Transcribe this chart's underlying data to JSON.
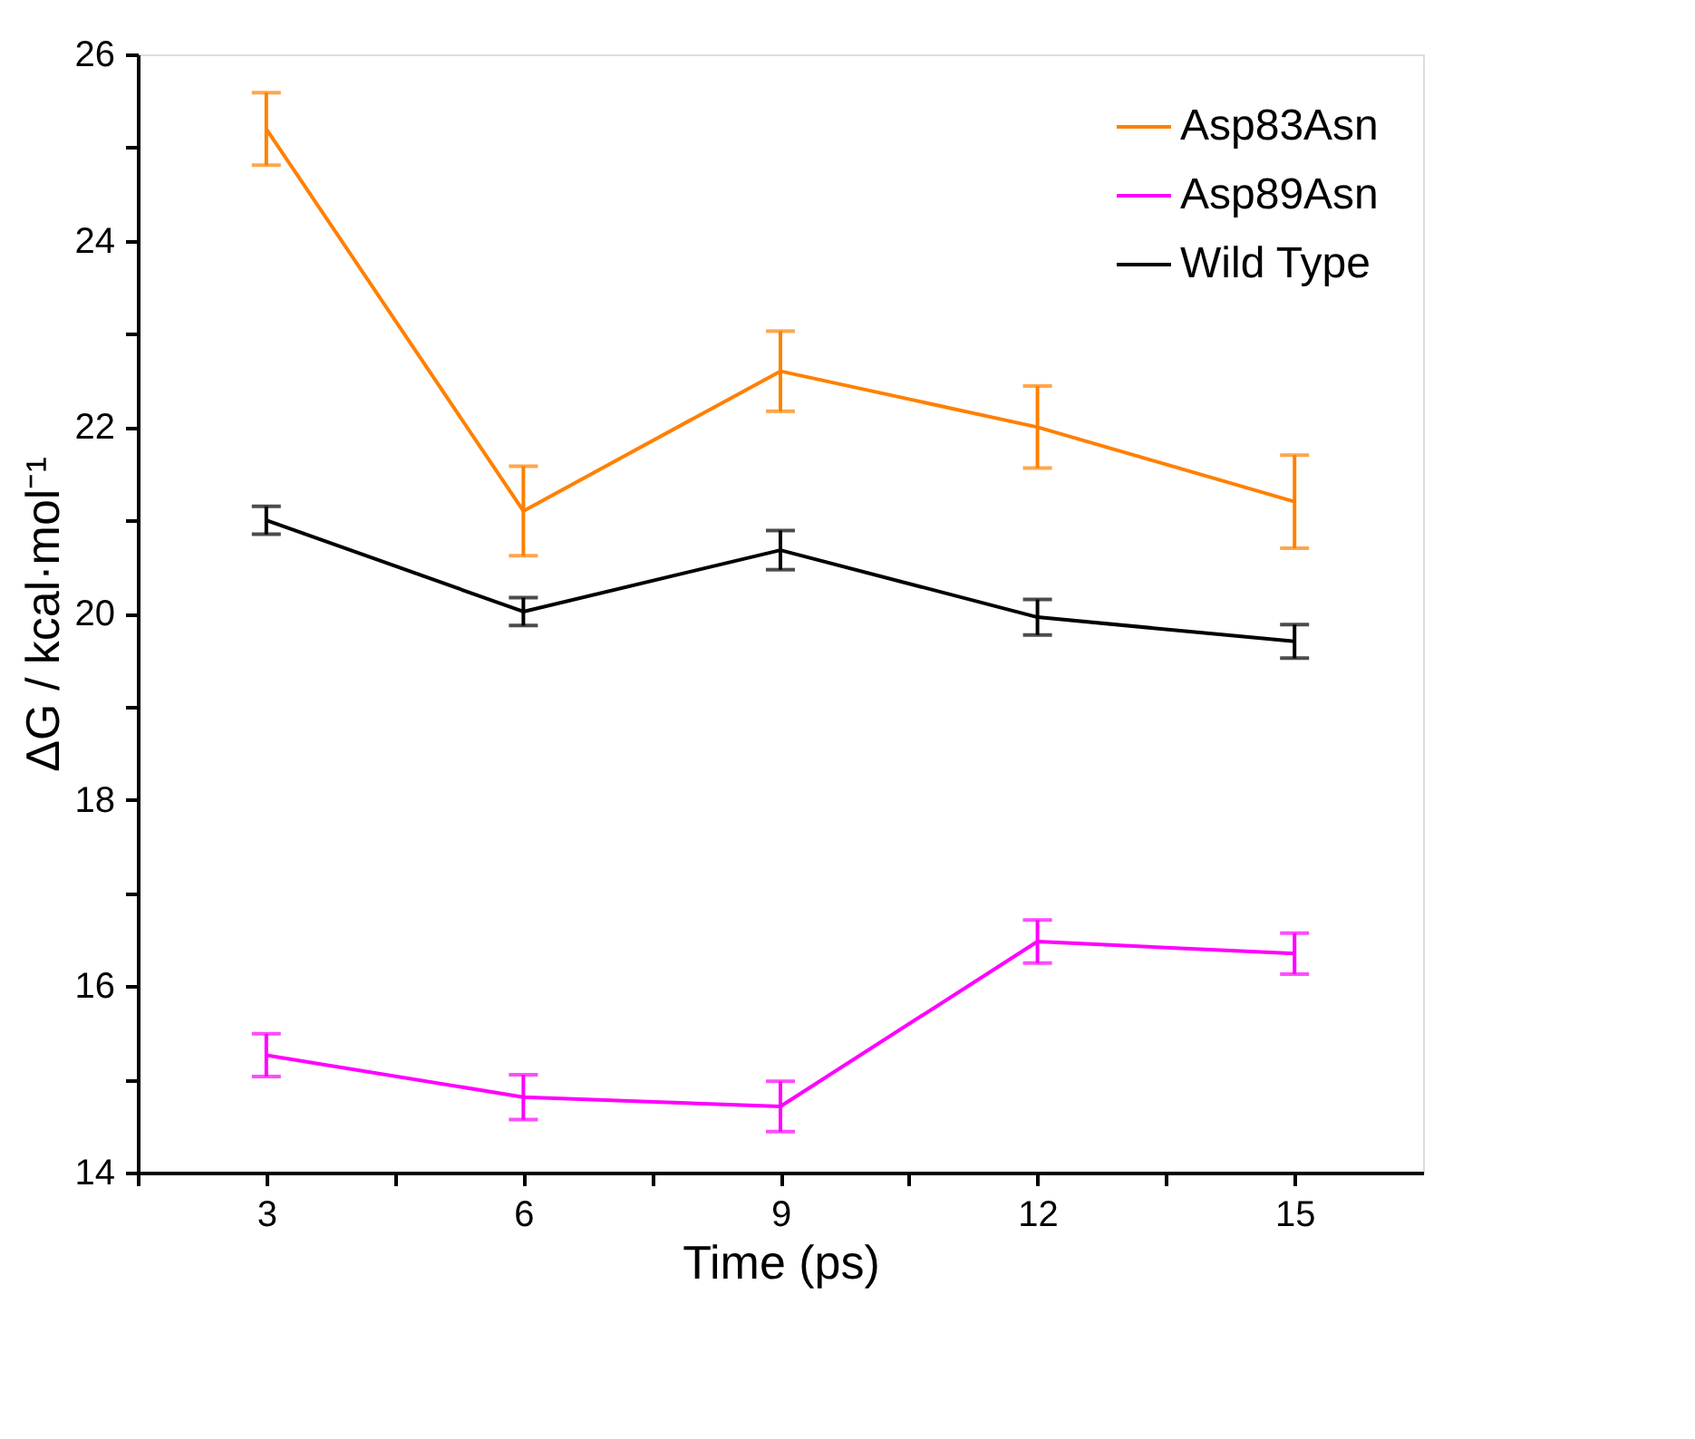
{
  "chart_data": {
    "type": "line",
    "xlabel": "Time (ps)",
    "ylabel": "ΔG / kcal·mol⁻¹",
    "x": [
      3,
      6,
      9,
      12,
      15
    ],
    "series": [
      {
        "name": "Asp83Asn",
        "color": "#ff8000",
        "values": [
          25.2,
          21.1,
          22.6,
          22.0,
          21.2
        ],
        "errors": [
          0.39,
          0.48,
          0.43,
          0.44,
          0.5
        ]
      },
      {
        "name": "Asp89Asn",
        "color": "#ff00ff",
        "values": [
          15.26,
          14.81,
          14.71,
          16.48,
          16.35
        ],
        "errors": [
          0.23,
          0.24,
          0.27,
          0.23,
          0.22
        ]
      },
      {
        "name": "Wild Type",
        "color": "#000000",
        "values": [
          21.0,
          20.02,
          20.68,
          19.96,
          19.7
        ],
        "errors": [
          0.15,
          0.15,
          0.21,
          0.19,
          0.18
        ]
      }
    ],
    "xlim": [
      1.5,
      16.5
    ],
    "xticks": [
      {
        "value": 1.5,
        "label": null
      },
      3,
      {
        "value": 4.5,
        "label": null
      },
      6,
      {
        "value": 7.5,
        "label": null
      },
      9,
      {
        "value": 10.5,
        "label": null
      },
      12,
      {
        "value": 13.5,
        "label": null
      },
      15
    ],
    "ylim": [
      14,
      26
    ],
    "yticks": [
      14,
      {
        "value": 15,
        "label": null
      },
      16,
      {
        "value": 17,
        "label": null
      },
      18,
      {
        "value": 19,
        "label": null
      },
      20,
      {
        "value": 21,
        "label": null
      },
      22,
      {
        "value": 23,
        "label": null
      },
      24,
      {
        "value": 25,
        "label": null
      },
      26
    ],
    "legend": "top right",
    "grid": false,
    "marker": "none",
    "line_style": "solid"
  }
}
